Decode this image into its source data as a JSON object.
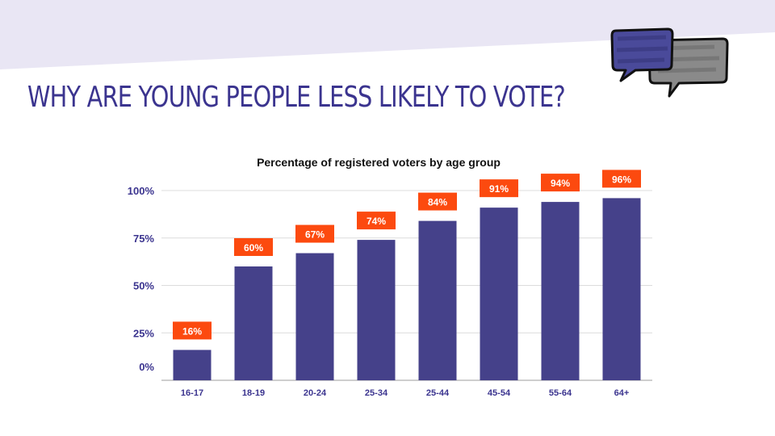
{
  "page": {
    "title": "WHY ARE YOUNG PEOPLE LESS LIKELY TO VOTE?"
  },
  "icon": {
    "name": "speech-bubbles-icon"
  },
  "colors": {
    "title": "#3b348f",
    "bar": "#45418a",
    "label_bg": "#fc4a0f",
    "band": "#e9e6f4",
    "grid": "#dcdcdc"
  },
  "chart_data": {
    "type": "bar",
    "title": "Percentage of registered voters by age group",
    "categories": [
      "16-17",
      "18-19",
      "20-24",
      "25-34",
      "25-44",
      "45-54",
      "55-64",
      "64+"
    ],
    "values": [
      16,
      60,
      67,
      74,
      84,
      91,
      94,
      96
    ],
    "data_labels": [
      "16%",
      "60%",
      "67%",
      "74%",
      "84%",
      "91%",
      "94%",
      "96%"
    ],
    "yticks": [
      0,
      25,
      50,
      75,
      100
    ],
    "ytick_labels": [
      "0%",
      "25%",
      "50%",
      "75%",
      "100%"
    ],
    "ylim": [
      0,
      100
    ],
    "xlabel": "",
    "ylabel": "",
    "grid": true
  }
}
